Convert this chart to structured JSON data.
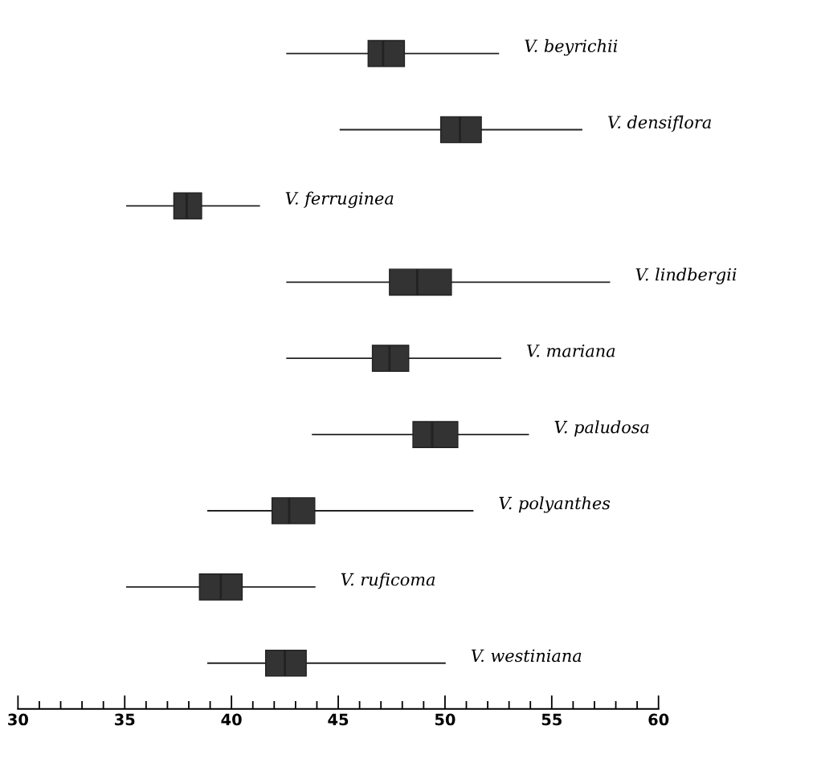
{
  "chart_data": {
    "type": "box",
    "orientation": "horizontal",
    "categories": [
      "V. beyrichii",
      "V. densiflora",
      "V. ferruginea",
      "V. lindbergii",
      "V. mariana",
      "V. paludosa",
      "V. polyanthes",
      "V. ruficoma",
      "V. westiniana"
    ],
    "boxes": [
      {
        "low": 42.6,
        "q1": 46.4,
        "median": 47.1,
        "q3": 48.1,
        "high": 52.5
      },
      {
        "low": 45.1,
        "q1": 49.8,
        "median": 50.7,
        "q3": 51.7,
        "high": 56.4
      },
      {
        "low": 35.1,
        "q1": 37.3,
        "median": 37.9,
        "q3": 38.6,
        "high": 41.3
      },
      {
        "low": 42.6,
        "q1": 47.4,
        "median": 48.7,
        "q3": 50.3,
        "high": 57.7
      },
      {
        "low": 42.6,
        "q1": 46.6,
        "median": 47.4,
        "q3": 48.3,
        "high": 52.6
      },
      {
        "low": 43.8,
        "q1": 48.5,
        "median": 49.4,
        "q3": 50.6,
        "high": 53.9
      },
      {
        "low": 38.9,
        "q1": 41.9,
        "median": 42.7,
        "q3": 43.9,
        "high": 51.3
      },
      {
        "low": 35.1,
        "q1": 38.5,
        "median": 39.5,
        "q3": 40.5,
        "high": 43.9
      },
      {
        "low": 38.9,
        "q1": 41.6,
        "median": 42.5,
        "q3": 43.5,
        "high": 50.0
      }
    ],
    "color": "#333333",
    "xlim": [
      30,
      60
    ],
    "xticks": [
      30,
      {
        "value": 31,
        "label": null
      },
      {
        "value": 32,
        "label": null
      },
      {
        "value": 33,
        "label": null
      },
      {
        "value": 34,
        "label": null
      },
      35,
      {
        "value": 36,
        "label": null
      },
      {
        "value": 37,
        "label": null
      },
      {
        "value": 38,
        "label": null
      },
      {
        "value": 39,
        "label": null
      },
      40,
      {
        "value": 41,
        "label": null
      },
      {
        "value": 42,
        "label": null
      },
      {
        "value": 43,
        "label": null
      },
      {
        "value": 44,
        "label": null
      },
      45,
      {
        "value": 46,
        "label": null
      },
      {
        "value": 47,
        "label": null
      },
      {
        "value": 48,
        "label": null
      },
      {
        "value": 49,
        "label": null
      },
      50,
      {
        "value": 51,
        "label": null
      },
      {
        "value": 52,
        "label": null
      },
      {
        "value": 53,
        "label": null
      },
      {
        "value": 54,
        "label": null
      },
      55,
      {
        "value": 56,
        "label": null
      },
      {
        "value": 57,
        "label": null
      },
      {
        "value": 58,
        "label": null
      },
      {
        "value": 59,
        "label": null
      },
      60
    ],
    "grid": false,
    "legend": false
  }
}
